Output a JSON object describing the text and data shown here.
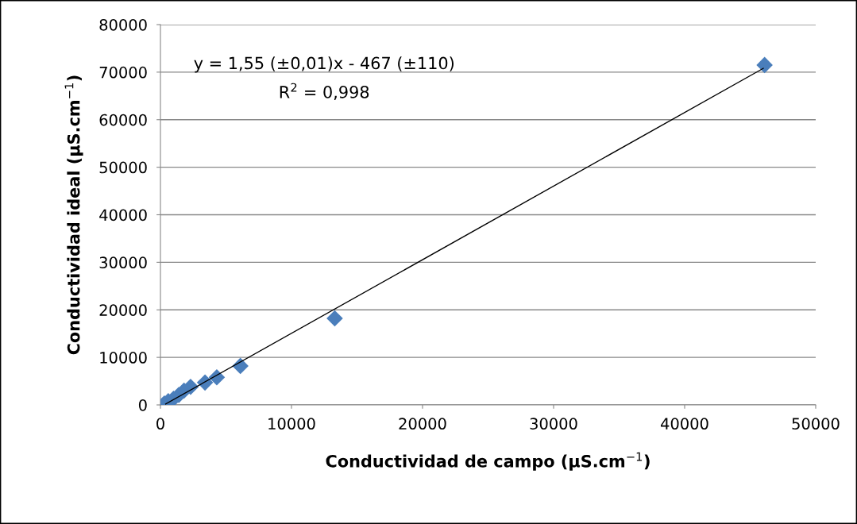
{
  "chart_data": {
    "type": "scatter",
    "xlabel": "Conductividad de campo (µS.cm$^{−1}$)",
    "ylabel": "Conductividad ideal (µS.cm$^{−1}$)",
    "xlim": [
      0,
      50000
    ],
    "xticks": [
      0,
      10000,
      20000,
      30000,
      40000,
      50000
    ],
    "ylim": [
      0,
      80000
    ],
    "yticks": [
      0,
      10000,
      20000,
      30000,
      40000,
      50000,
      60000,
      70000,
      80000
    ],
    "grid": "y",
    "marker": "diamond",
    "legend": false,
    "series": [
      {
        "color": "#4a7ebb",
        "x": [
          300,
          600,
          1000,
          1400,
          1800,
          2300,
          3400,
          4300,
          6100,
          13300,
          46100
        ],
        "values": [
          300,
          800,
          1300,
          2100,
          3000,
          3800,
          4700,
          5800,
          8200,
          18200,
          71500
        ]
      },
      {
        "type": "line",
        "color": "#000000",
        "marker": "none",
        "x": [
          400,
          46000
        ],
        "values": [
          200,
          70800
        ]
      }
    ],
    "annotations": [
      "y = 1,55 (±0,01)x - 467 (±110)",
      "R$^{2}$ = 0,998"
    ]
  }
}
